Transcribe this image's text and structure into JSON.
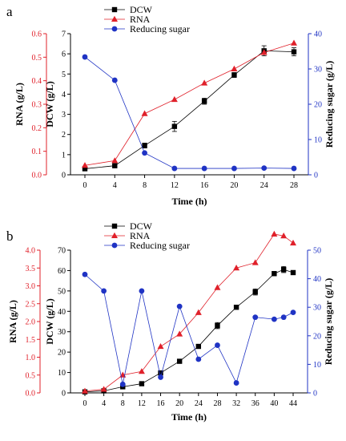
{
  "chart_data": [
    {
      "panel_label": "a",
      "type": "line",
      "xlabel": "Time (h)",
      "ylabel_left_outer": "RNA (g/L)",
      "ylabel_left_inner": "DCW (g/L)",
      "ylabel_right": "Reducing sugar (g/L)",
      "xlim": [
        0,
        28
      ],
      "xticks": [
        0,
        4,
        8,
        12,
        16,
        20,
        24,
        28
      ],
      "rna_axis": {
        "lim": [
          0,
          0.6
        ],
        "ticks": [
          "0.0",
          "0.1",
          "0.2",
          "0.3",
          "0.4",
          "0.5",
          "0.6"
        ],
        "color": "#e0202a"
      },
      "dcw_axis": {
        "lim": [
          0,
          7
        ],
        "ticks": [
          "0",
          "1",
          "2",
          "3",
          "4",
          "5",
          "6",
          "7"
        ],
        "color": "#000000"
      },
      "sugar_axis": {
        "lim": [
          0,
          40
        ],
        "ticks": [
          "0",
          "10",
          "20",
          "30",
          "40"
        ],
        "color": "#1f33c4"
      },
      "legend_position": "top-center",
      "series": [
        {
          "name": "DCW",
          "axis": "dcw",
          "color": "#000000",
          "marker": "square",
          "x": [
            0,
            4,
            8,
            12,
            16,
            20,
            24,
            28
          ],
          "y": [
            0.3,
            0.45,
            1.45,
            2.4,
            3.65,
            4.95,
            6.15,
            6.1
          ],
          "err": [
            0.05,
            0.05,
            0.12,
            0.25,
            0.15,
            0.12,
            0.25,
            0.2
          ]
        },
        {
          "name": "RNA",
          "axis": "rna",
          "color": "#e0202a",
          "marker": "triangle",
          "x": [
            0,
            4,
            8,
            12,
            16,
            20,
            24,
            28
          ],
          "y": [
            0.04,
            0.06,
            0.26,
            0.32,
            0.39,
            0.45,
            0.52,
            0.56
          ]
        },
        {
          "name": "Reducing sugar",
          "axis": "sugar",
          "color": "#1f33c4",
          "marker": "circle",
          "x": [
            0,
            4,
            8,
            12,
            16,
            20,
            24,
            28
          ],
          "y": [
            33.4,
            26.8,
            6.2,
            1.8,
            1.8,
            1.8,
            1.9,
            1.8
          ]
        }
      ]
    },
    {
      "panel_label": "b",
      "type": "line",
      "xlabel": "Time (h)",
      "ylabel_left_outer": "RNA (g/L)",
      "ylabel_left_inner": "DCW (g/L)",
      "ylabel_right": "Reducing sugar (g/L)",
      "xlim": [
        0,
        44
      ],
      "xticks": [
        0,
        4,
        8,
        12,
        16,
        20,
        24,
        28,
        32,
        36,
        40,
        44
      ],
      "rna_axis": {
        "lim": [
          0,
          4.0
        ],
        "ticks": [
          "0.0",
          "0.5",
          "1.0",
          "1.5",
          "2.0",
          "2.5",
          "3.0",
          "3.5",
          "4.0"
        ],
        "color": "#e0202a"
      },
      "dcw_axis": {
        "lim": [
          0,
          70
        ],
        "ticks": [
          "0",
          "10",
          "20",
          "30",
          "40",
          "50",
          "60",
          "70"
        ],
        "color": "#000000"
      },
      "sugar_axis": {
        "lim": [
          0,
          50
        ],
        "ticks": [
          "0",
          "10",
          "20",
          "30",
          "40",
          "50"
        ],
        "color": "#1f33c4"
      },
      "legend_position": "top-center",
      "series": [
        {
          "name": "DCW",
          "axis": "dcw",
          "color": "#000000",
          "marker": "square",
          "x": [
            0,
            4,
            8,
            12,
            16,
            20,
            24,
            28,
            32,
            36,
            40,
            42,
            44
          ],
          "y": [
            0.5,
            1,
            3,
            4.5,
            9.8,
            15.5,
            22.8,
            33,
            42,
            49.5,
            58.5,
            60.5,
            59
          ],
          "err": [
            0.3,
            0.3,
            0.3,
            0.4,
            0.5,
            0.6,
            0.8,
            1.5,
            0.8,
            1.5,
            1.0,
            1.5,
            1.0
          ]
        },
        {
          "name": "RNA",
          "axis": "rna",
          "color": "#e0202a",
          "marker": "triangle",
          "x": [
            0,
            4,
            8,
            12,
            16,
            20,
            24,
            28,
            32,
            36,
            40,
            42,
            44
          ],
          "y": [
            0.05,
            0.1,
            0.5,
            0.6,
            1.3,
            1.65,
            2.25,
            2.95,
            3.5,
            3.65,
            4.45,
            4.4,
            4.2
          ]
        },
        {
          "name": "Reducing sugar",
          "axis": "sugar",
          "color": "#1f33c4",
          "marker": "circle",
          "x": [
            0,
            4,
            8,
            12,
            16,
            20,
            24,
            28,
            32,
            36,
            40,
            42,
            44
          ],
          "y": [
            41.5,
            35.7,
            3.0,
            35.7,
            5.5,
            30.3,
            11.8,
            16.7,
            3.5,
            26.5,
            25.8,
            26.5,
            28.2
          ]
        }
      ]
    }
  ]
}
